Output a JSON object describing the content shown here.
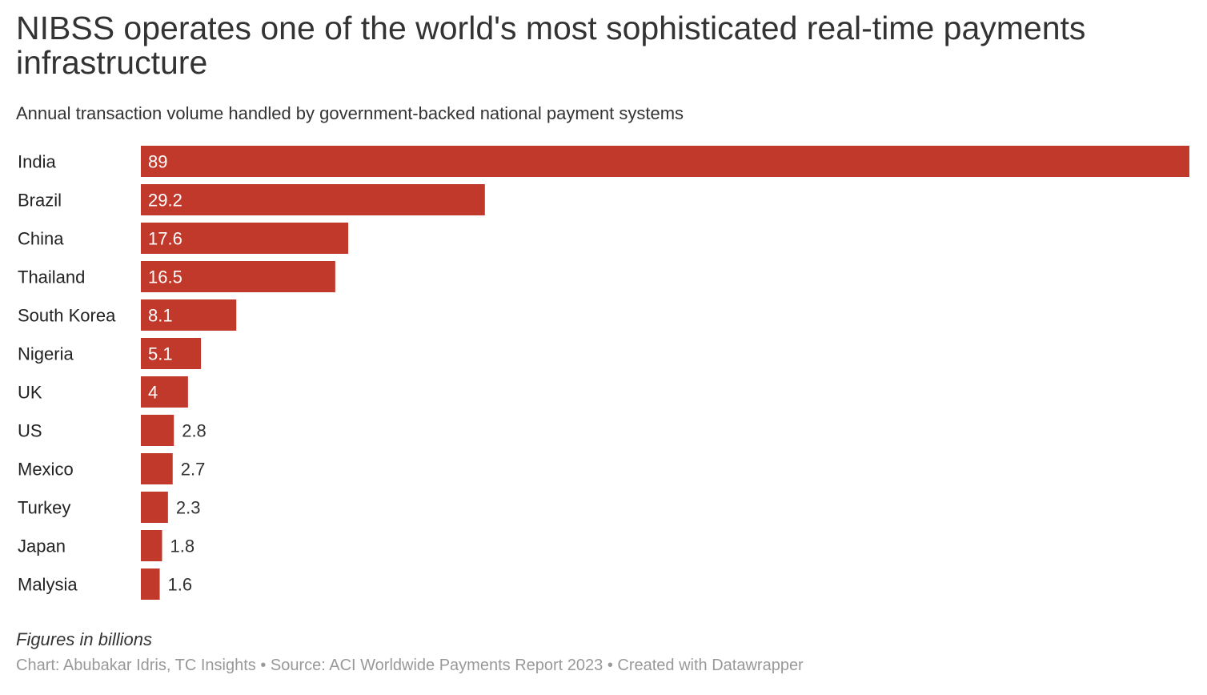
{
  "title": "NIBSS operates one of the world's most sophisticated real-time payments infrastructure",
  "subtitle": "Annual transaction volume handled by government-backed national payment systems",
  "notes": "Figures in billions",
  "footer": "Chart: Abubakar Idris, TC Insights • Source: ACI Worldwide Payments Report 2023 • Created with Datawrapper",
  "colors": {
    "bar": "#c0392b",
    "label_inside": "#ffffff",
    "label_outside": "#333333",
    "category": "#222222"
  },
  "chart_data": {
    "type": "bar",
    "orientation": "horizontal",
    "categories": [
      "India",
      "Brazil",
      "China",
      "Thailand",
      "South Korea",
      "Nigeria",
      "UK",
      "US",
      "Mexico",
      "Turkey",
      "Japan",
      "Malysia"
    ],
    "values": [
      89,
      29.2,
      17.6,
      16.5,
      8.1,
      5.1,
      4,
      2.8,
      2.7,
      2.3,
      1.8,
      1.6
    ],
    "value_labels": [
      "89",
      "29.2",
      "17.6",
      "16.5",
      "8.1",
      "5.1",
      "4",
      "2.8",
      "2.7",
      "2.3",
      "1.8",
      "1.6"
    ],
    "xlim": [
      0,
      89
    ],
    "grid": false,
    "legend": "none"
  }
}
